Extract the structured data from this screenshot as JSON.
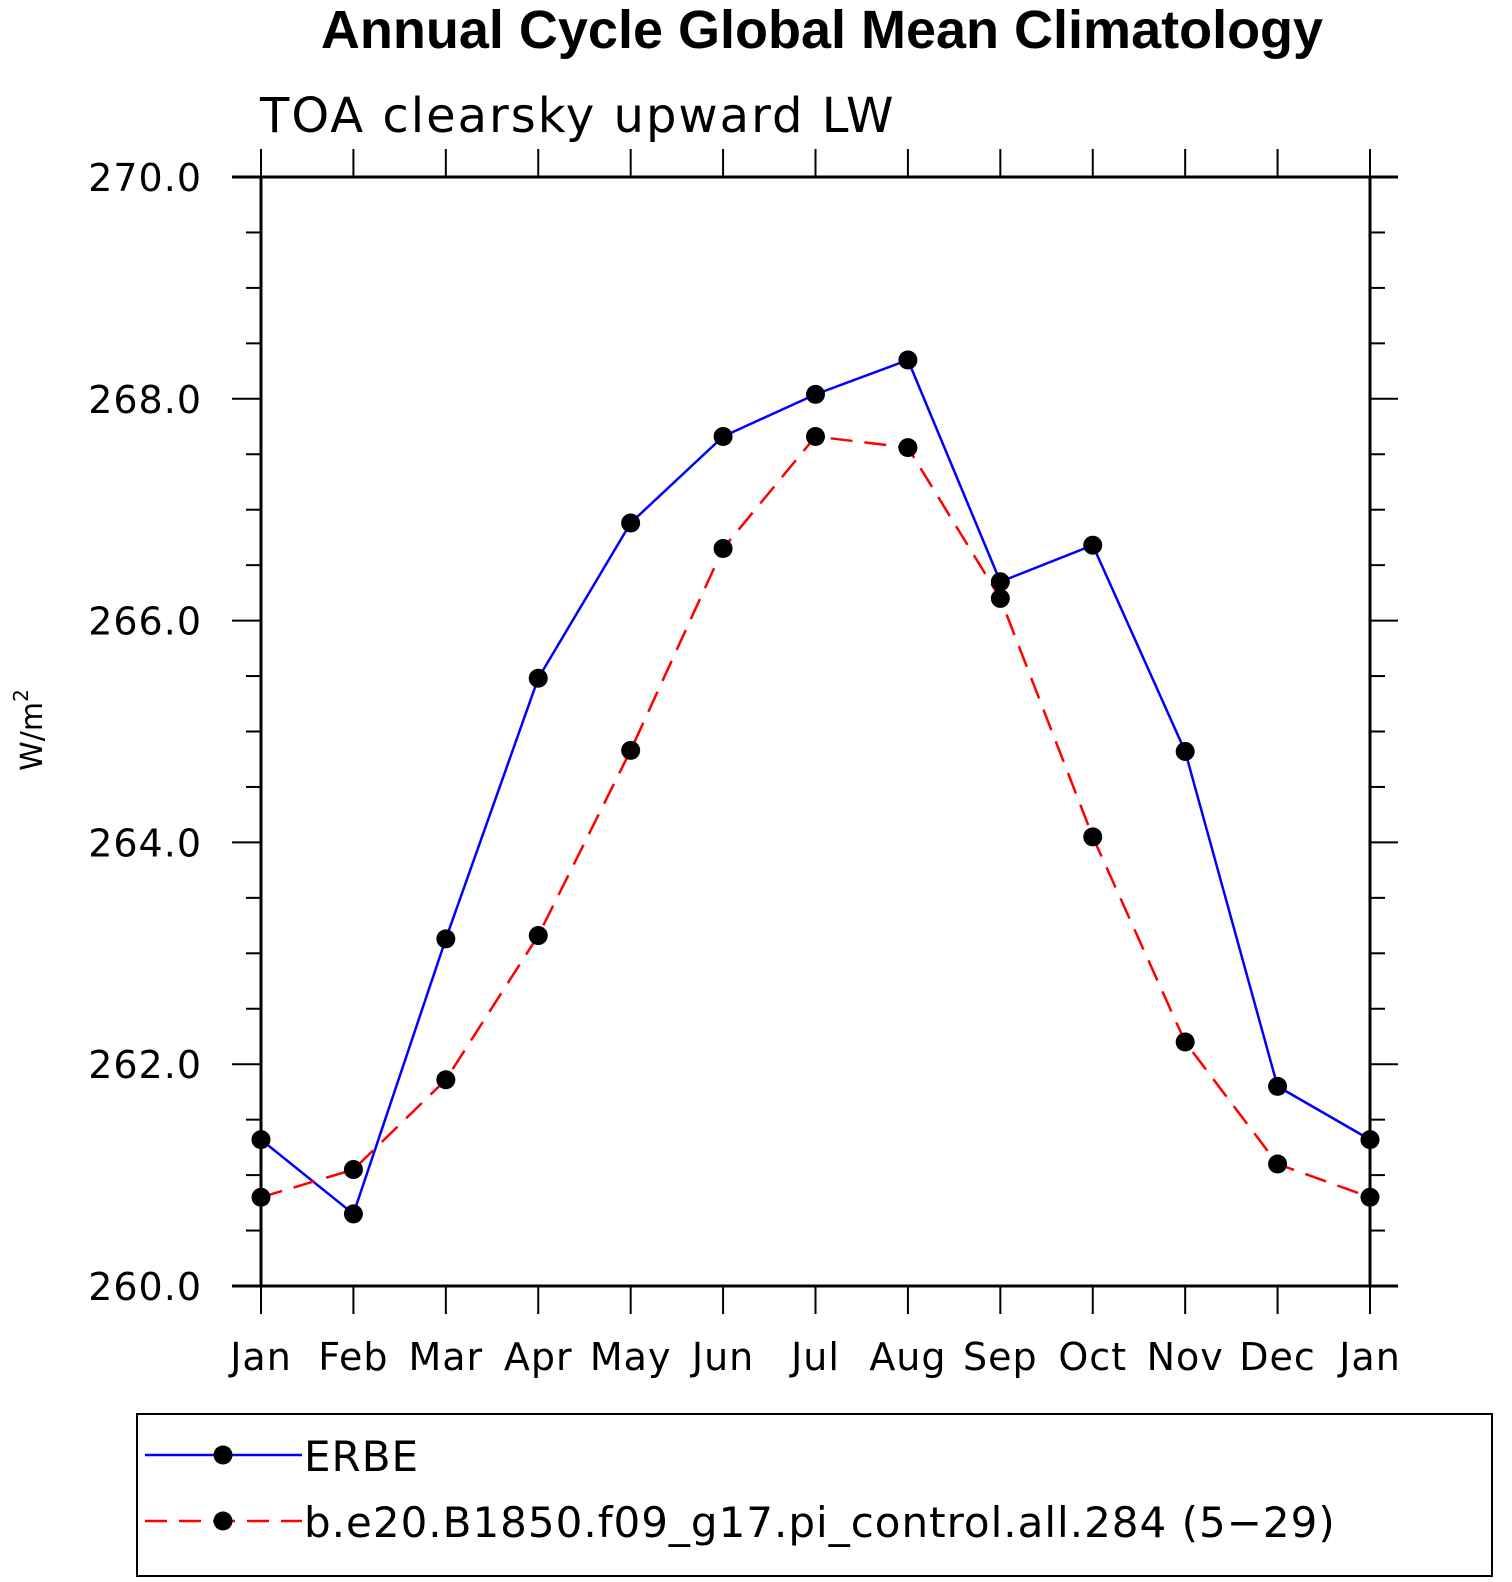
{
  "chart_data": {
    "type": "line",
    "title": "Annual Cycle Global Mean Climatology",
    "subtitle": "TOA clearsky upward LW",
    "ylabel": "W/m",
    "ylabel_sup": "2",
    "xlabel": "",
    "categories": [
      "Jan",
      "Feb",
      "Mar",
      "Apr",
      "May",
      "Jun",
      "Jul",
      "Aug",
      "Sep",
      "Oct",
      "Nov",
      "Dec",
      "Jan"
    ],
    "ylim": [
      260.0,
      270.0
    ],
    "yticks": [
      "260.0",
      "262.0",
      "264.0",
      "266.0",
      "268.0",
      "270.0"
    ],
    "grid": false,
    "legend_position": "bottom",
    "series": [
      {
        "name": "ERBE",
        "color": "#0000ff",
        "dash": "solid",
        "marker": "filled-circle",
        "values": [
          261.32,
          260.65,
          263.13,
          265.48,
          266.88,
          267.66,
          268.04,
          268.35,
          266.35,
          266.68,
          264.82,
          261.8,
          261.32
        ]
      },
      {
        "name": "b.e20.B1850.f09_g17.pi_control.all.284 (5−29)",
        "color": "#ff0000",
        "dash": "dashed",
        "marker": "filled-circle",
        "values": [
          260.8,
          261.05,
          261.86,
          263.16,
          264.83,
          266.65,
          267.66,
          267.56,
          266.2,
          264.05,
          262.2,
          261.1,
          260.8
        ]
      }
    ]
  }
}
